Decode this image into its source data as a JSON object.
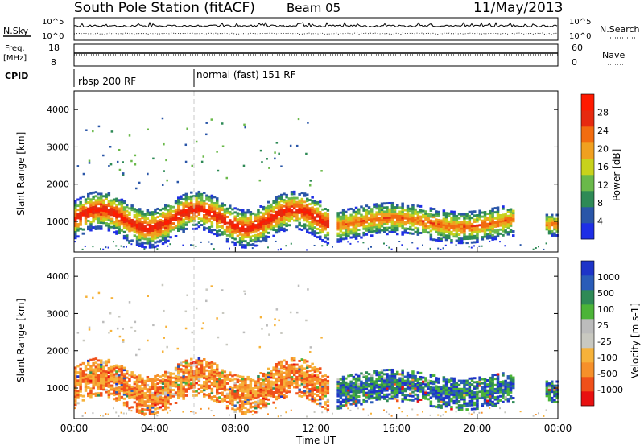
{
  "header": {
    "station": "South Pole Station (fitACF)",
    "beam": "Beam 05",
    "date": "11/May/2013"
  },
  "top_panels": {
    "nsky_label": "N.Sky",
    "nsky_ticks": [
      "10^5",
      "10^0"
    ],
    "nsearch_label": "N.Search",
    "nsearch_ticks": [
      "10^5",
      "10^0"
    ],
    "freq_label_line1": "Freq.",
    "freq_label_line2": "[MHz]",
    "freq_ticks": [
      "18",
      "8"
    ],
    "nave_label": "Nave",
    "nave_ticks": [
      "60",
      "0"
    ],
    "cpid_label": "CPID",
    "cpid_segments": [
      {
        "label": "rbsp 200 RF",
        "start_hour": 0
      },
      {
        "label": "normal (fast) 151 RF",
        "start_hour": 6
      }
    ]
  },
  "x_axis": {
    "title": "Time UT",
    "ticks": [
      "00:00",
      "04:00",
      "08:00",
      "12:00",
      "16:00",
      "20:00",
      "00:00"
    ]
  },
  "colors": {
    "power": [
      "#1e2ee6",
      "#2a56a8",
      "#2e8a56",
      "#6ab94a",
      "#c8d21c",
      "#f0a020",
      "#f26c10",
      "#e62a10",
      "#ff1a00"
    ],
    "velocity": [
      "#e81010",
      "#f0501a",
      "#f6902a",
      "#f6b23a",
      "#c8c8c0",
      "#bcbcbc",
      "#4cb438",
      "#2e8a56",
      "#2a5cb8",
      "#1e34c8"
    ]
  },
  "chart_data": [
    {
      "type": "heatmap",
      "title": "Power",
      "ylabel": "Slant Range [km]",
      "xlabel": "Time UT",
      "ylim": [
        180,
        4500
      ],
      "xlim": [
        0,
        24
      ],
      "yticks": [
        1000,
        2000,
        3000,
        4000
      ],
      "colorbar": {
        "label": "Power [dB]",
        "range": [
          0,
          32
        ],
        "ticks": [
          "4",
          "8",
          "12",
          "16",
          "20",
          "24",
          "28"
        ]
      },
      "features": [
        {
          "name": "main band",
          "t_range": [
            0,
            12.6
          ],
          "range_km": [
            600,
            1700
          ],
          "peak_db": 30
        },
        {
          "name": "secondary band",
          "t_range": [
            13,
            21.8
          ],
          "range_km": [
            600,
            1500
          ],
          "peak_db": 24
        }
      ]
    },
    {
      "type": "heatmap",
      "title": "Velocity",
      "ylabel": "Slant Range [km]",
      "xlabel": "Time UT",
      "ylim": [
        180,
        4500
      ],
      "xlim": [
        0,
        24
      ],
      "yticks": [
        1000,
        2000,
        3000,
        4000
      ],
      "colorbar": {
        "label": "Velocity [m s-1]",
        "range": [
          -1000,
          1000
        ],
        "ticks": [
          "1000",
          "500",
          "100",
          "25",
          "-25",
          "-100",
          "-500",
          "-1000"
        ]
      },
      "features": [
        {
          "name": "main band",
          "t_range": [
            0,
            12.6
          ],
          "range_km": [
            600,
            1700
          ],
          "dominant": "-100 to -500 m/s"
        },
        {
          "name": "secondary band",
          "t_range": [
            13,
            21.8
          ],
          "range_km": [
            600,
            1500
          ],
          "dominant": "100 to 1000 m/s"
        }
      ]
    }
  ]
}
